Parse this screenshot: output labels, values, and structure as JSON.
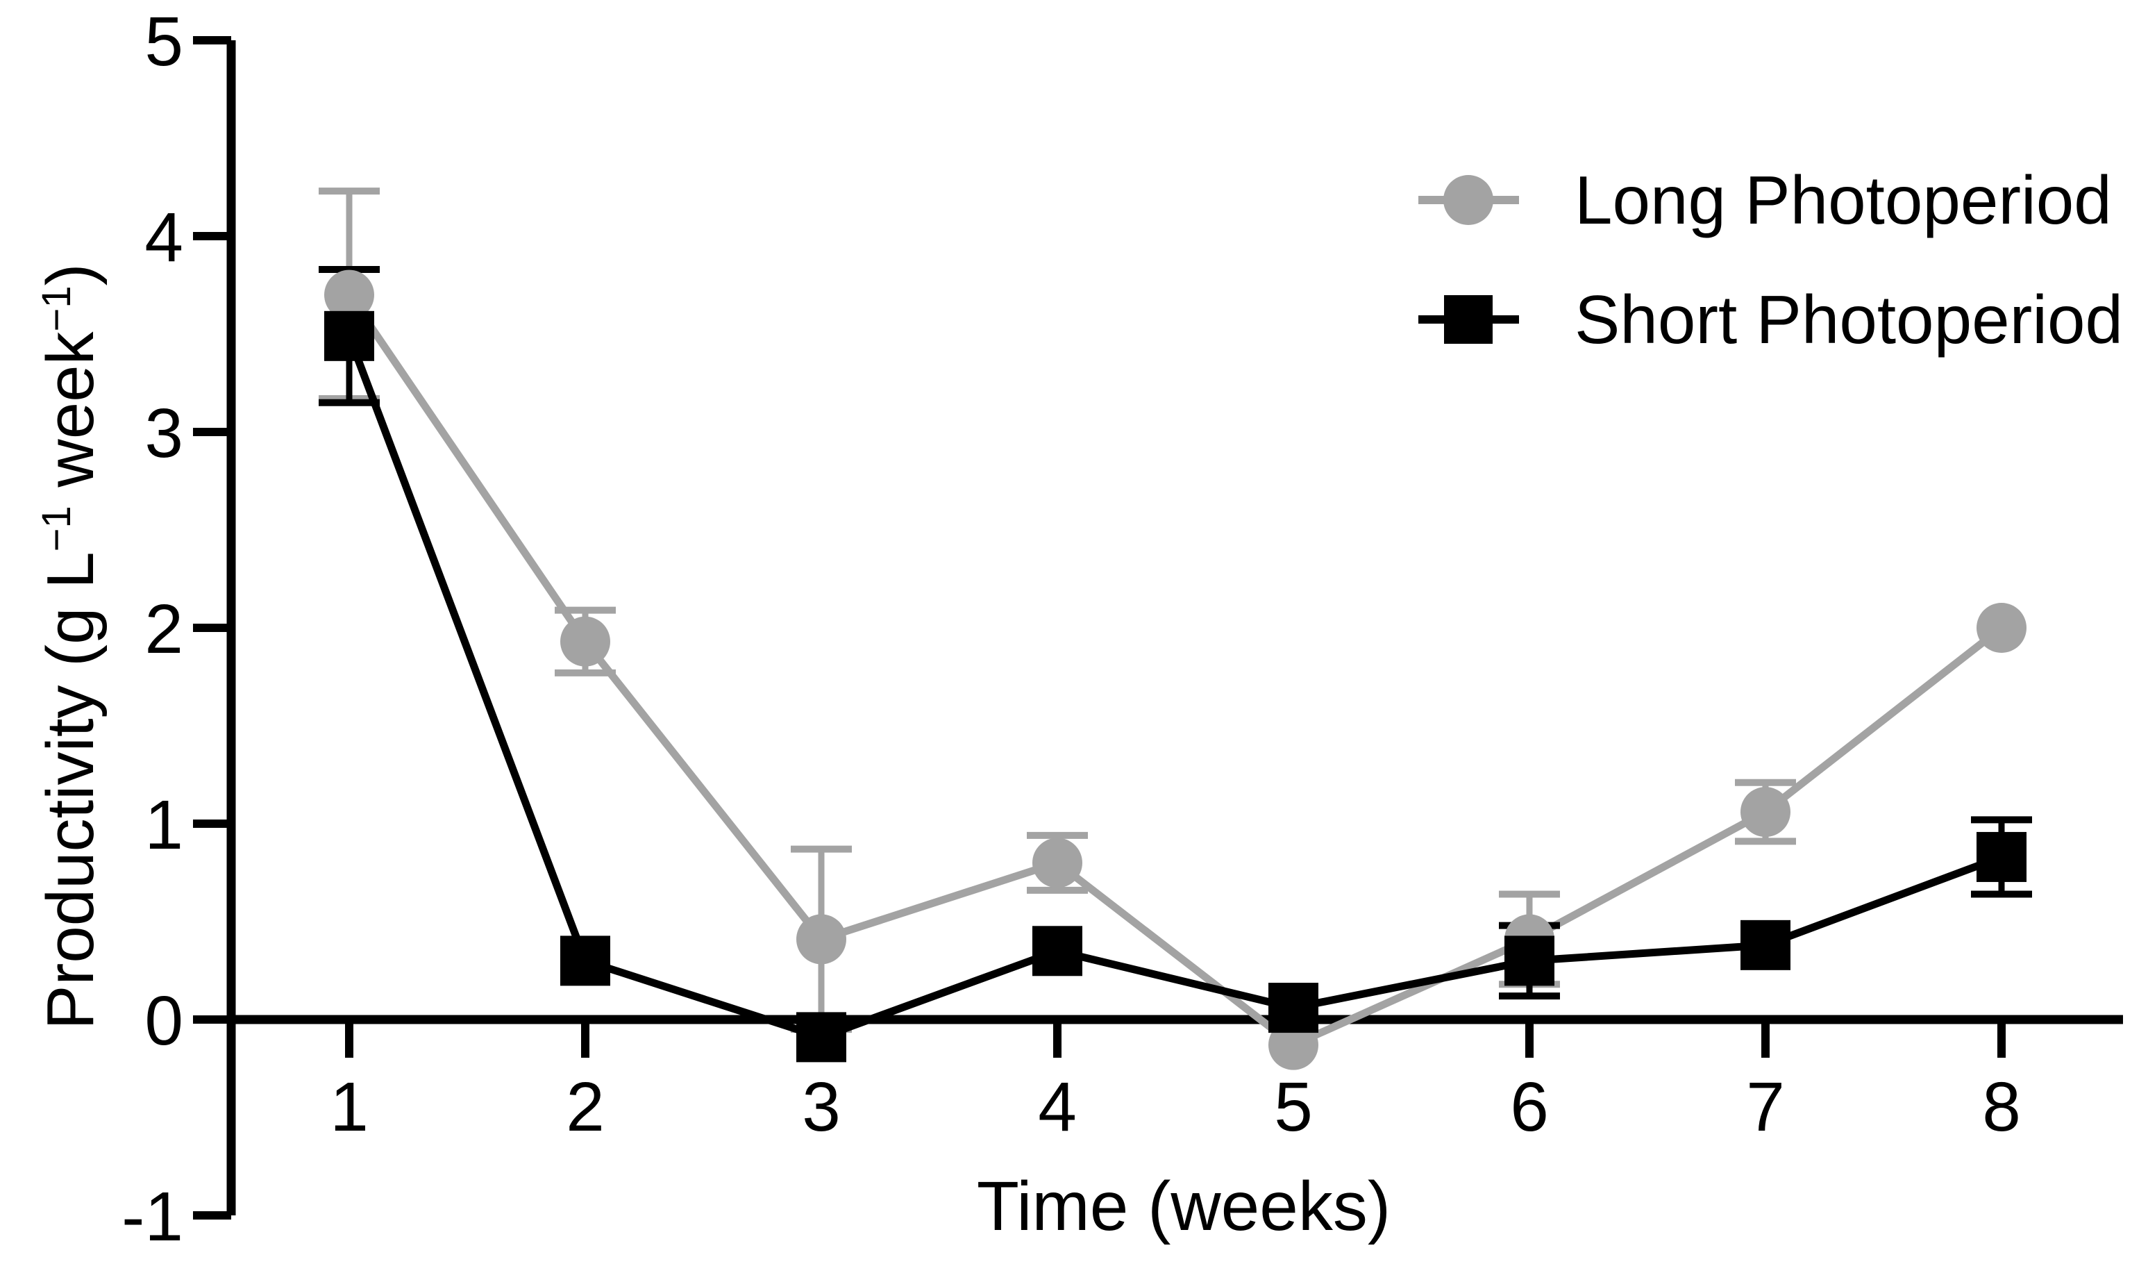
{
  "figure": {
    "background": "#ffffff",
    "text_color": "#000000"
  },
  "labels": {
    "x_title": "Time (weeks)",
    "y_title_pre": "Productivity (g L",
    "y_title_sup1": "−1",
    "y_title_mid": " week",
    "y_title_sup2": "−1",
    "y_title_post": ")"
  },
  "legend": {
    "position": "top-right",
    "items": [
      {
        "label": "Long Photoperiod",
        "marker": "circle",
        "color": "#a3a3a3"
      },
      {
        "label": "Short Photoperiod",
        "marker": "square",
        "color": "#000000"
      }
    ]
  },
  "chart_data": {
    "type": "line",
    "title": "",
    "xlabel": "Time (weeks)",
    "ylabel": "Productivity (g L-1 week-1)",
    "x": [
      1,
      2,
      3,
      4,
      5,
      6,
      7,
      8
    ],
    "xtick_labels": [
      "1",
      "2",
      "3",
      "4",
      "5",
      "6",
      "7",
      "8"
    ],
    "ylim": [
      -1,
      5
    ],
    "yticks": [
      5,
      4,
      3,
      2,
      1,
      0,
      -1
    ],
    "grid": false,
    "error_bars": true,
    "legend_position": "top-right",
    "series": [
      {
        "name": "Long Photoperiod",
        "marker": "circle",
        "color": "#a3a3a3",
        "values": [
          3.7,
          1.93,
          0.41,
          0.8,
          -0.13,
          0.41,
          1.06,
          2.0
        ],
        "errors": [
          0.53,
          0.16,
          0.46,
          0.14,
          0,
          0.23,
          0.15,
          0
        ]
      },
      {
        "name": "Short Photoperiod",
        "marker": "square",
        "color": "#000000",
        "values": [
          3.49,
          0.3,
          -0.09,
          0.35,
          0.06,
          0.3,
          0.38,
          0.83
        ],
        "errors": [
          0.34,
          0,
          0,
          0,
          0,
          0.18,
          0,
          0.19
        ]
      }
    ]
  }
}
